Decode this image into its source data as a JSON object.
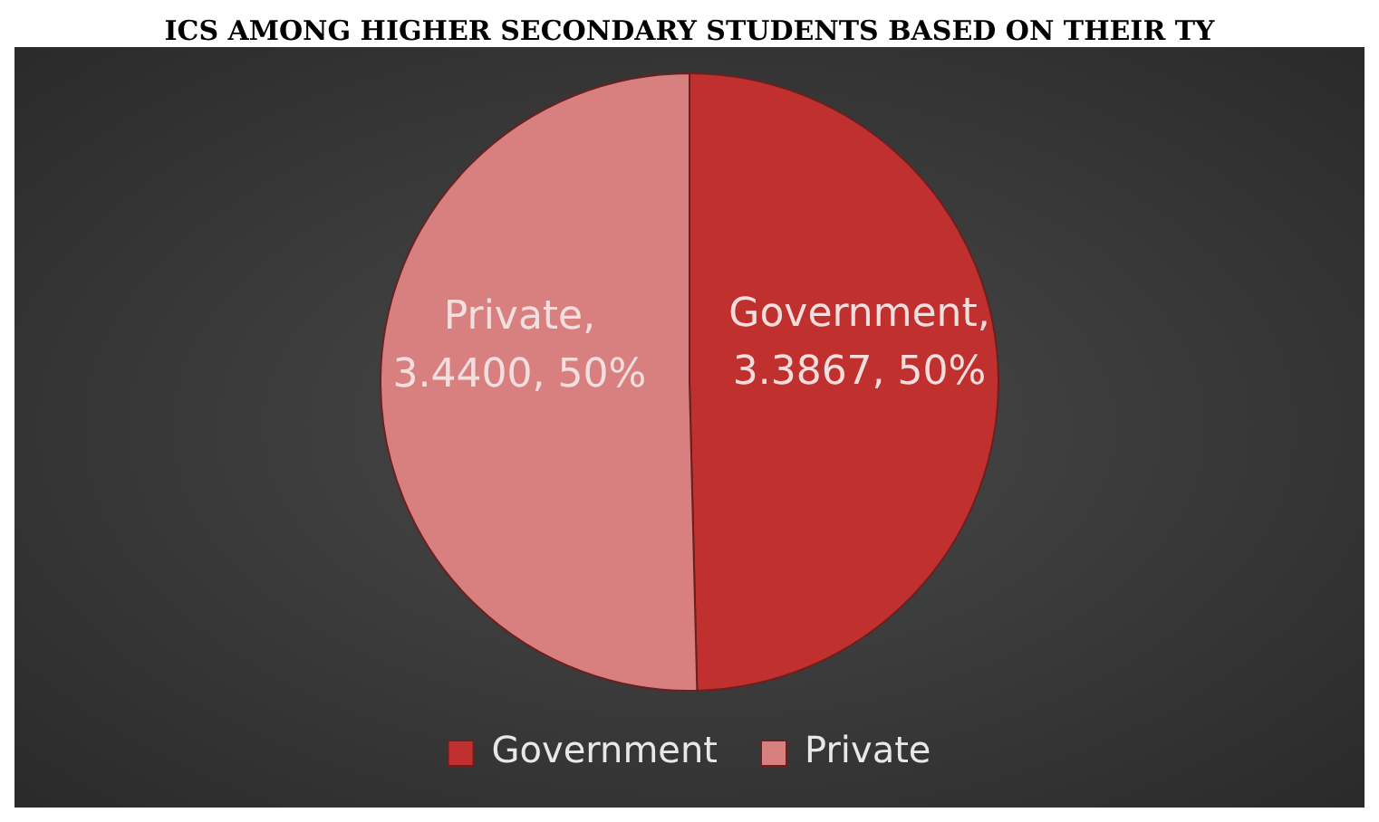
{
  "chart_data": {
    "type": "pie",
    "title": "ICS AMONG HIGHER SECONDARY STUDENTS BASED ON THEIR TY",
    "categories": [
      "Government",
      "Private"
    ],
    "values": [
      3.3867,
      3.44
    ],
    "colors": [
      "#c0302f",
      "#d88080"
    ],
    "value_labels": [
      "Government, 3.3867, 50%",
      "Private, 3.4400, 50%"
    ],
    "legend": "bottom"
  }
}
